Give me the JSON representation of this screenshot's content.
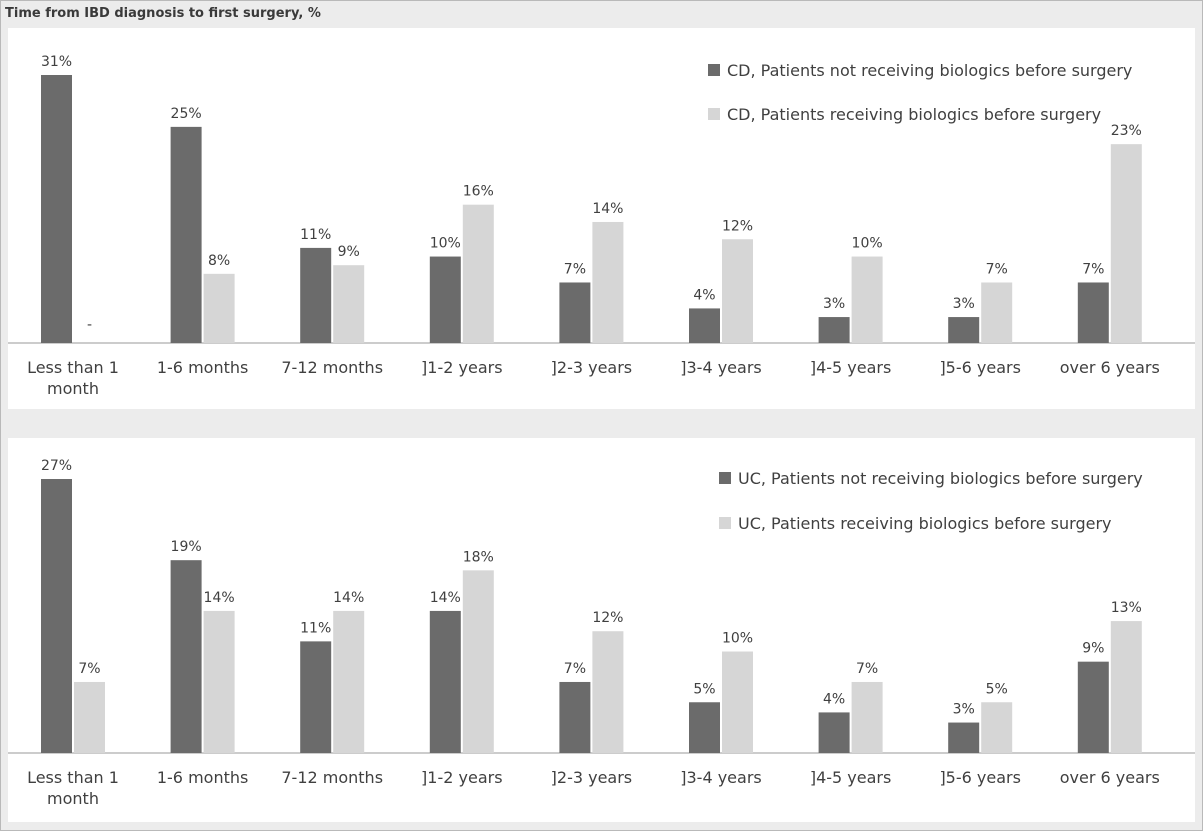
{
  "title": "Time from IBD diagnosis to first surgery, %",
  "colors": {
    "dark": "#6b6b6b",
    "light": "#d6d6d6",
    "axis": "#9a9a9a",
    "text": "#404040"
  },
  "chart_data": [
    {
      "type": "bar",
      "categories": [
        [
          "Less than 1",
          "month"
        ],
        [
          "1-6 months"
        ],
        [
          "7-12 months"
        ],
        [
          "]1-2 years"
        ],
        [
          "]2-3 years"
        ],
        [
          "]3-4 years"
        ],
        [
          "]4-5 years"
        ],
        [
          "]5-6 years"
        ],
        [
          "over 6 years"
        ]
      ],
      "series": [
        {
          "name": "CD, Patients not receiving biologics before surgery",
          "values": [
            31,
            25,
            11,
            10,
            7,
            4,
            3,
            3,
            7
          ],
          "labels": [
            "31%",
            "25%",
            "11%",
            "10%",
            "7%",
            "4%",
            "3%",
            "3%",
            "7%"
          ]
        },
        {
          "name": "CD, Patients receiving biologics before surgery",
          "values": [
            null,
            8,
            9,
            16,
            14,
            12,
            10,
            7,
            23
          ],
          "labels": [
            "-",
            "8%",
            "9%",
            "16%",
            "14%",
            "12%",
            "10%",
            "7%",
            "23%"
          ]
        }
      ],
      "ylim": [
        0,
        31
      ],
      "legend": "top-right"
    },
    {
      "type": "bar",
      "categories": [
        [
          "Less than 1",
          "month"
        ],
        [
          "1-6 months"
        ],
        [
          "7-12 months"
        ],
        [
          "]1-2 years"
        ],
        [
          "]2-3 years"
        ],
        [
          "]3-4 years"
        ],
        [
          "]4-5 years"
        ],
        [
          "]5-6 years"
        ],
        [
          "over 6 years"
        ]
      ],
      "series": [
        {
          "name": "UC, Patients not receiving biologics before surgery",
          "values": [
            27,
            19,
            11,
            14,
            7,
            5,
            4,
            3,
            9
          ],
          "labels": [
            "27%",
            "19%",
            "11%",
            "14%",
            "7%",
            "5%",
            "4%",
            "3%",
            "9%"
          ]
        },
        {
          "name": "UC, Patients receiving biologics before surgery",
          "values": [
            7,
            14,
            14,
            18,
            12,
            10,
            7,
            5,
            13
          ],
          "labels": [
            "7%",
            "14%",
            "14%",
            "18%",
            "12%",
            "10%",
            "7%",
            "5%",
            "13%"
          ]
        }
      ],
      "ylim": [
        0,
        27
      ],
      "legend": "top-right"
    }
  ]
}
